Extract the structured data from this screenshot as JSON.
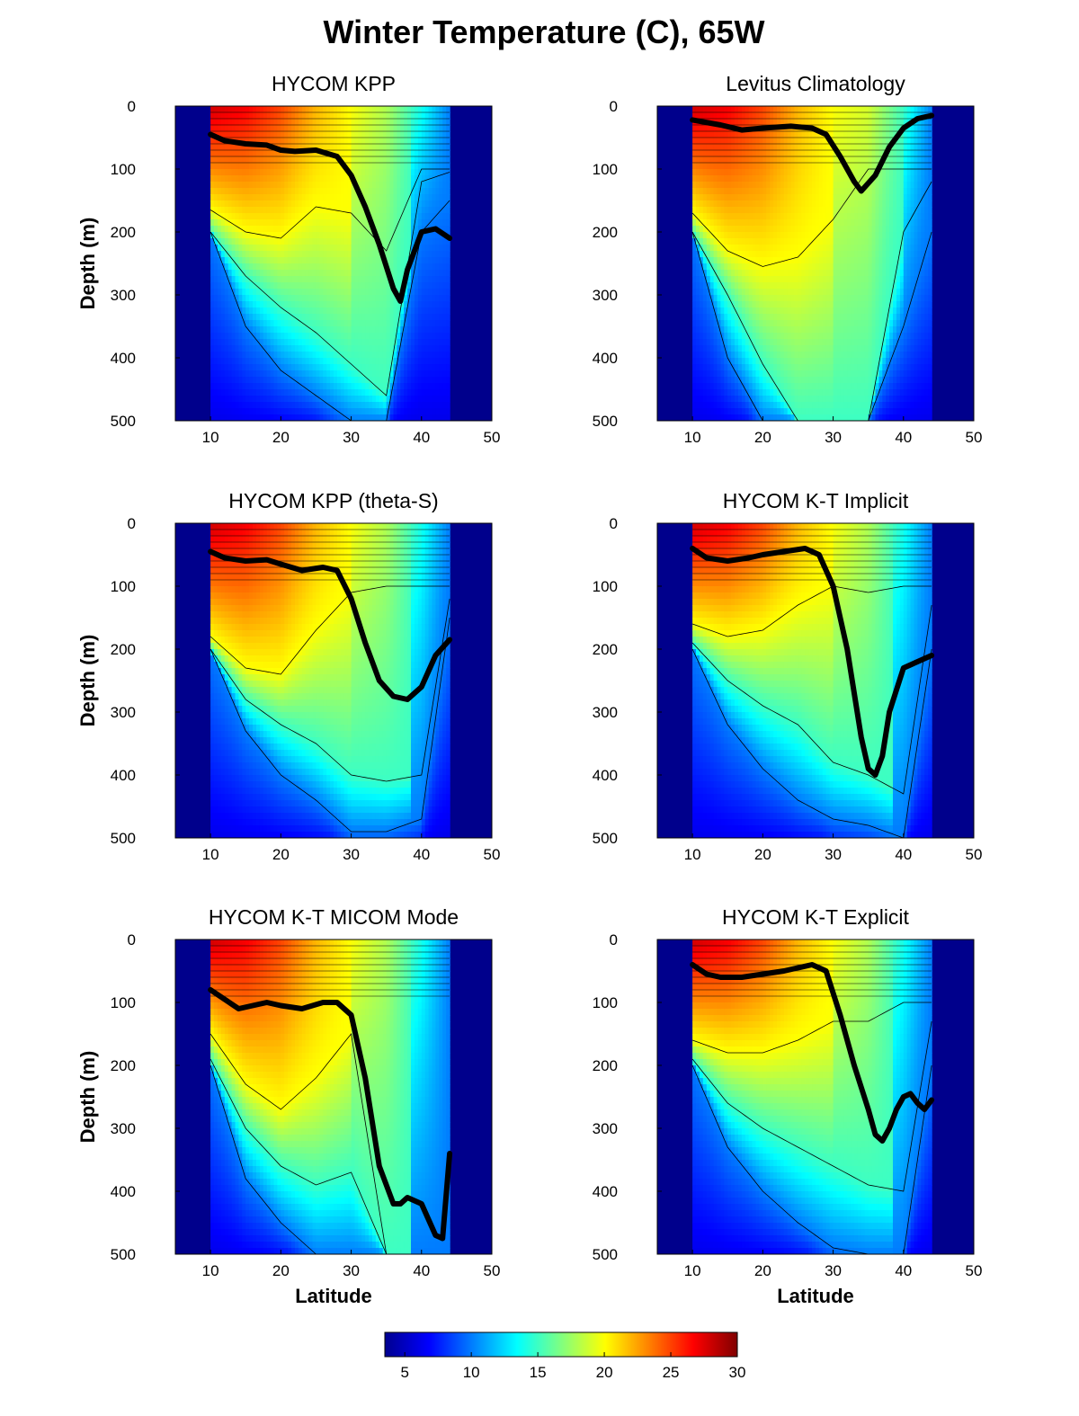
{
  "figure": {
    "title": "Winter Temperature (C), 65W"
  },
  "colors": {
    "land": "#00008c",
    "mixed_layer_line": "#000000",
    "contour": "#000000",
    "colormap": [
      "#00008f",
      "#0000ff",
      "#0080ff",
      "#00ffff",
      "#80ff80",
      "#ffff00",
      "#ff8000",
      "#ff0000",
      "#800000"
    ]
  },
  "chart_data": [
    {
      "type": "heatmap",
      "title": "HYCOM KPP",
      "xlabel": "",
      "ylabel": "Depth (m)",
      "xlim": [
        5,
        50
      ],
      "ylim": [
        0,
        500
      ],
      "y_reversed": true,
      "xticks": [
        10,
        20,
        30,
        40,
        50
      ],
      "yticks": [
        0,
        100,
        200,
        300,
        400,
        500
      ],
      "valid_lat_range": [
        10,
        44
      ],
      "surface_temperature": {
        "lat": [
          10,
          15,
          20,
          25,
          30,
          35,
          40,
          44
        ],
        "values": [
          28,
          27,
          25,
          22,
          20,
          18,
          14,
          10
        ]
      },
      "isotherm_depths": {
        "lat": [
          10,
          15,
          20,
          25,
          30,
          35,
          40,
          44
        ],
        "t20": [
          165,
          200,
          210,
          160,
          170,
          230,
          100,
          100
        ],
        "t15": [
          200,
          270,
          320,
          360,
          410,
          460,
          120,
          105
        ],
        "t10": [
          200,
          350,
          420,
          460,
          500,
          500,
          200,
          150
        ]
      },
      "mixed_layer_depth": {
        "lat": [
          10,
          12,
          15,
          18,
          20,
          22,
          25,
          28,
          30,
          32,
          34,
          36,
          37,
          38,
          40,
          42,
          44
        ],
        "depth": [
          45,
          55,
          60,
          62,
          70,
          72,
          70,
          80,
          110,
          160,
          220,
          290,
          310,
          260,
          200,
          195,
          210
        ]
      }
    },
    {
      "type": "heatmap",
      "title": "Levitus Climatology",
      "xlabel": "",
      "ylabel": "",
      "xlim": [
        5,
        50
      ],
      "ylim": [
        0,
        500
      ],
      "y_reversed": true,
      "xticks": [
        10,
        20,
        30,
        40,
        50
      ],
      "yticks": [
        0,
        100,
        200,
        300,
        400,
        500
      ],
      "valid_lat_range": [
        10,
        44
      ],
      "surface_temperature": {
        "lat": [
          10,
          15,
          20,
          25,
          30,
          35,
          40,
          44
        ],
        "values": [
          28,
          27,
          25,
          22,
          20,
          19,
          15,
          10
        ]
      },
      "isotherm_depths": {
        "lat": [
          10,
          15,
          20,
          25,
          30,
          35,
          40,
          44
        ],
        "t20": [
          170,
          230,
          255,
          240,
          180,
          100,
          100,
          100
        ],
        "t15": [
          200,
          300,
          410,
          500,
          500,
          500,
          200,
          120
        ],
        "t10": [
          200,
          400,
          500,
          500,
          500,
          500,
          350,
          200
        ]
      },
      "mixed_layer_depth": {
        "lat": [
          10,
          14,
          17,
          20,
          24,
          27,
          29,
          31,
          33,
          34,
          36,
          38,
          40,
          42,
          44
        ],
        "depth": [
          22,
          30,
          38,
          35,
          32,
          35,
          45,
          80,
          120,
          135,
          110,
          65,
          35,
          20,
          15
        ]
      }
    },
    {
      "type": "heatmap",
      "title": "HYCOM KPP (theta-S)",
      "xlabel": "",
      "ylabel": "Depth (m)",
      "xlim": [
        5,
        50
      ],
      "ylim": [
        0,
        500
      ],
      "y_reversed": true,
      "xticks": [
        10,
        20,
        30,
        40,
        50
      ],
      "yticks": [
        0,
        100,
        200,
        300,
        400,
        500
      ],
      "valid_lat_range": [
        10,
        44
      ],
      "surface_temperature": {
        "lat": [
          10,
          15,
          20,
          25,
          30,
          35,
          40,
          44
        ],
        "values": [
          28,
          27,
          25,
          22,
          20,
          18,
          14,
          10
        ]
      },
      "isotherm_depths": {
        "lat": [
          10,
          15,
          20,
          25,
          30,
          35,
          40,
          44
        ],
        "t20": [
          180,
          230,
          240,
          170,
          110,
          100,
          100,
          100
        ],
        "t15": [
          200,
          280,
          320,
          350,
          400,
          410,
          400,
          120
        ],
        "t10": [
          200,
          330,
          400,
          440,
          490,
          490,
          470,
          150
        ]
      },
      "mixed_layer_depth": {
        "lat": [
          10,
          12,
          15,
          18,
          20,
          23,
          26,
          28,
          30,
          32,
          34,
          36,
          38,
          40,
          42,
          44
        ],
        "depth": [
          45,
          55,
          60,
          58,
          65,
          75,
          70,
          75,
          120,
          190,
          250,
          275,
          280,
          260,
          210,
          185
        ]
      }
    },
    {
      "type": "heatmap",
      "title": "HYCOM K-T Implicit",
      "xlabel": "",
      "ylabel": "",
      "xlim": [
        5,
        50
      ],
      "ylim": [
        0,
        500
      ],
      "y_reversed": true,
      "xticks": [
        10,
        20,
        30,
        40,
        50
      ],
      "yticks": [
        0,
        100,
        200,
        300,
        400,
        500
      ],
      "valid_lat_range": [
        10,
        44
      ],
      "surface_temperature": {
        "lat": [
          10,
          15,
          20,
          25,
          30,
          35,
          40,
          44
        ],
        "values": [
          28,
          27,
          25,
          22,
          20,
          18,
          14,
          10
        ]
      },
      "isotherm_depths": {
        "lat": [
          10,
          15,
          20,
          25,
          30,
          35,
          40,
          44
        ],
        "t20": [
          160,
          180,
          170,
          130,
          100,
          110,
          100,
          100
        ],
        "t15": [
          190,
          250,
          290,
          320,
          380,
          400,
          430,
          130
        ],
        "t10": [
          200,
          320,
          390,
          440,
          470,
          480,
          500,
          200
        ]
      },
      "mixed_layer_depth": {
        "lat": [
          10,
          12,
          15,
          18,
          20,
          23,
          26,
          28,
          30,
          32,
          34,
          35,
          36,
          37,
          38,
          40,
          42,
          44
        ],
        "depth": [
          40,
          55,
          60,
          55,
          50,
          45,
          40,
          50,
          100,
          200,
          340,
          390,
          400,
          370,
          300,
          230,
          220,
          210
        ]
      }
    },
    {
      "type": "heatmap",
      "title": "HYCOM K-T MICOM Mode",
      "xlabel": "Latitude",
      "ylabel": "Depth (m)",
      "xlim": [
        5,
        50
      ],
      "ylim": [
        0,
        500
      ],
      "y_reversed": true,
      "xticks": [
        10,
        20,
        30,
        40,
        50
      ],
      "yticks": [
        0,
        100,
        200,
        300,
        400,
        500
      ],
      "valid_lat_range": [
        10,
        44
      ],
      "surface_temperature": {
        "lat": [
          10,
          15,
          20,
          25,
          30,
          35,
          40,
          44
        ],
        "values": [
          28,
          27,
          25,
          22,
          20,
          18,
          14,
          10
        ]
      },
      "isotherm_depths": {
        "lat": [
          10,
          15,
          20,
          25,
          30,
          35,
          40,
          44
        ],
        "t20": [
          150,
          230,
          270,
          220,
          150,
          500,
          500,
          500
        ],
        "t15": [
          190,
          300,
          360,
          390,
          370,
          500,
          500,
          500
        ],
        "t10": [
          200,
          380,
          450,
          500,
          500,
          500,
          500,
          500
        ]
      },
      "mixed_layer_depth": {
        "lat": [
          10,
          12,
          14,
          16,
          18,
          20,
          23,
          26,
          28,
          30,
          32,
          34,
          36,
          37,
          38,
          40,
          42,
          43,
          44
        ],
        "depth": [
          80,
          95,
          110,
          105,
          100,
          105,
          110,
          100,
          100,
          120,
          220,
          360,
          420,
          420,
          410,
          420,
          470,
          475,
          340
        ]
      }
    },
    {
      "type": "heatmap",
      "title": "HYCOM K-T Explicit",
      "xlabel": "Latitude",
      "ylabel": "",
      "xlim": [
        5,
        50
      ],
      "ylim": [
        0,
        500
      ],
      "y_reversed": true,
      "xticks": [
        10,
        20,
        30,
        40,
        50
      ],
      "yticks": [
        0,
        100,
        200,
        300,
        400,
        500
      ],
      "valid_lat_range": [
        10,
        44
      ],
      "surface_temperature": {
        "lat": [
          10,
          15,
          20,
          25,
          30,
          35,
          40,
          44
        ],
        "values": [
          28,
          27,
          25,
          22,
          20,
          18,
          14,
          10
        ]
      },
      "isotherm_depths": {
        "lat": [
          10,
          15,
          20,
          25,
          30,
          35,
          40,
          44
        ],
        "t20": [
          160,
          180,
          180,
          160,
          130,
          130,
          100,
          100
        ],
        "t15": [
          190,
          260,
          300,
          330,
          360,
          390,
          400,
          130
        ],
        "t10": [
          200,
          330,
          400,
          450,
          490,
          500,
          500,
          200
        ]
      },
      "mixed_layer_depth": {
        "lat": [
          10,
          12,
          14,
          17,
          20,
          23,
          25,
          27,
          29,
          31,
          33,
          35,
          36,
          37,
          38,
          39,
          40,
          41,
          42,
          43,
          44
        ],
        "depth": [
          40,
          55,
          60,
          60,
          55,
          50,
          45,
          40,
          50,
          120,
          200,
          270,
          310,
          320,
          300,
          270,
          250,
          245,
          260,
          270,
          255
        ]
      }
    }
  ],
  "colorbar": {
    "min": 3.5,
    "max": 30,
    "ticks": [
      5,
      10,
      15,
      20,
      25,
      30
    ]
  }
}
